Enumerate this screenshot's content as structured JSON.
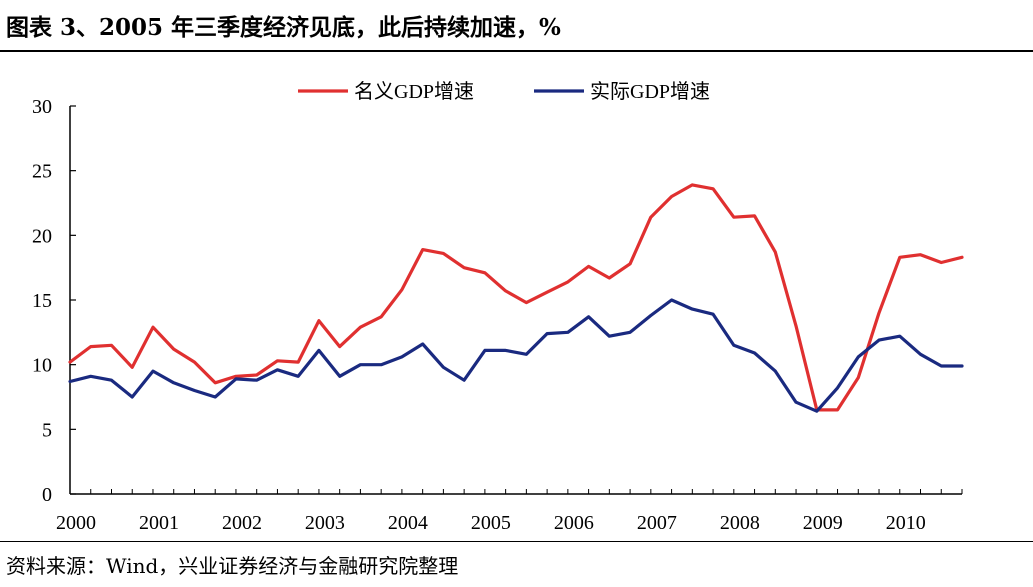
{
  "header": {
    "title": "图表 3、2005 年三季度经济见底，此后持续加速，%"
  },
  "footer": {
    "source": "资料来源：Wind，兴业证券经济与金融研究院整理"
  },
  "colors": {
    "nominal": "#e03030",
    "real": "#1a2a80",
    "axis": "#000000"
  },
  "chart_data": {
    "type": "line",
    "x_tick_labels": [
      "2000",
      "2001",
      "2002",
      "2003",
      "2004",
      "2005",
      "2006",
      "2007",
      "2008",
      "2009",
      "2010"
    ],
    "y_ticks": [
      0,
      5,
      10,
      15,
      20,
      25,
      30
    ],
    "ylim": [
      0,
      30
    ],
    "x_quarter_start": "2000Q1",
    "legend_position": "top-center",
    "grid": false,
    "series": [
      {
        "name": "名义GDP增速",
        "color": "#e03030",
        "values": [
          10.2,
          11.4,
          11.5,
          9.8,
          12.9,
          11.2,
          10.2,
          8.6,
          9.1,
          9.2,
          10.3,
          10.2,
          13.4,
          11.4,
          12.9,
          13.7,
          15.8,
          18.9,
          18.6,
          17.5,
          17.1,
          15.7,
          14.8,
          15.6,
          16.4,
          17.6,
          16.7,
          17.8,
          21.4,
          23.0,
          23.9,
          23.6,
          21.4,
          21.5,
          18.7,
          13.0,
          6.5,
          6.5,
          9.0,
          14.0,
          18.3,
          18.5,
          17.9,
          18.3
        ]
      },
      {
        "name": "实际GDP增速",
        "color": "#1a2a80",
        "values": [
          8.7,
          9.1,
          8.8,
          7.5,
          9.5,
          8.6,
          8.0,
          7.5,
          8.9,
          8.8,
          9.6,
          9.1,
          11.1,
          9.1,
          10.0,
          10.0,
          10.6,
          11.6,
          9.8,
          8.8,
          11.1,
          11.1,
          10.8,
          12.4,
          12.5,
          13.7,
          12.2,
          12.5,
          13.8,
          15.0,
          14.3,
          13.9,
          11.5,
          10.9,
          9.5,
          7.1,
          6.4,
          8.2,
          10.6,
          11.9,
          12.2,
          10.8,
          9.9,
          9.9
        ]
      }
    ]
  }
}
